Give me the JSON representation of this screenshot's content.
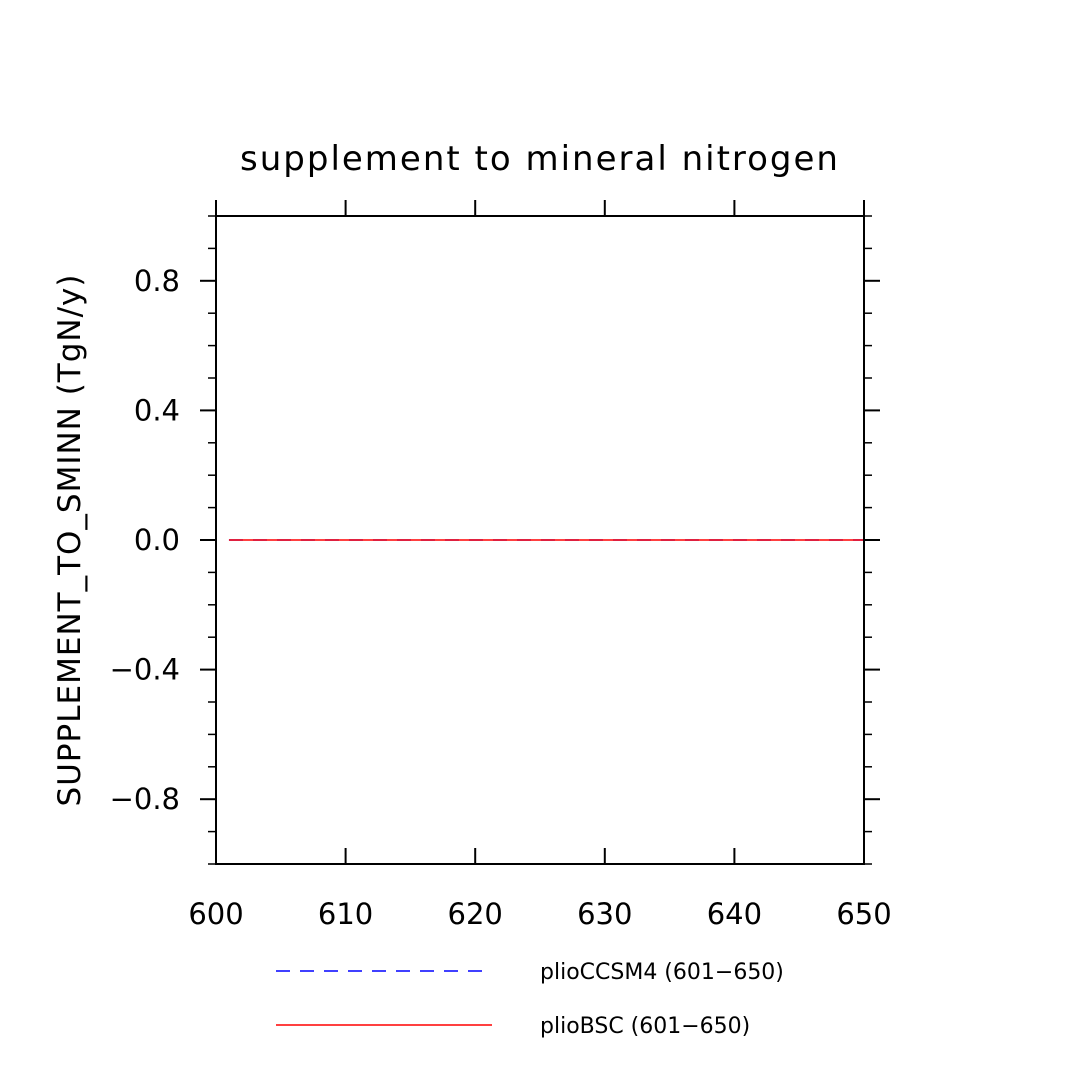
{
  "chart_data": {
    "type": "line",
    "title": "supplement to mineral nitrogen",
    "xlabel": "",
    "ylabel": "SUPPLEMENT_TO_SMINN   (TgN/y)",
    "xlim": [
      600,
      650
    ],
    "ylim": [
      -1.0,
      1.0
    ],
    "x_ticks": [
      600,
      610,
      620,
      630,
      640,
      650
    ],
    "x_tick_labels": [
      "600",
      "610",
      "620",
      "630",
      "640",
      "650"
    ],
    "y_ticks": [
      0.8,
      0.4,
      0.0,
      -0.4,
      -0.8
    ],
    "y_tick_labels": [
      "0.8",
      "0.4",
      "0.0",
      "−0.4",
      "−0.8"
    ],
    "y_minor_step": 0.1,
    "grid": false,
    "legend_position": "bottom",
    "series": [
      {
        "name": "plioCCSM4 (601−650)",
        "color": "#0000ff",
        "dash": "dashed",
        "x": [
          601,
          650
        ],
        "y": [
          0.0,
          0.0
        ]
      },
      {
        "name": "plioBSC (601−650)",
        "color": "#ff0000",
        "dash": "solid",
        "x": [
          601,
          650
        ],
        "y": [
          0.0,
          0.0
        ]
      }
    ]
  }
}
